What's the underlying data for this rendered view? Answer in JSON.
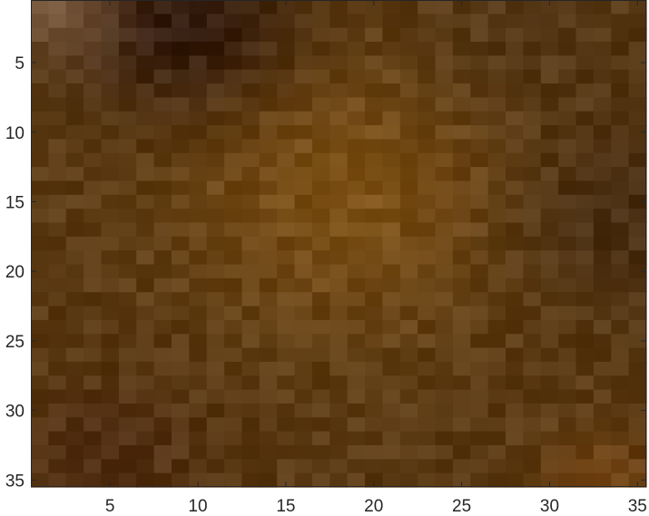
{
  "chart_data": {
    "type": "heatmap",
    "title": "",
    "xlabel": "",
    "ylabel": "",
    "xlim": [
      0.5,
      35.5
    ],
    "ylim": [
      0.5,
      35.5
    ],
    "y_direction": "reversed",
    "grid": false,
    "colormap": "RGB image",
    "x_ticks": [
      5,
      10,
      15,
      20,
      25,
      30,
      35
    ],
    "y_ticks": [
      5,
      10,
      15,
      20,
      25,
      30,
      35
    ],
    "x_tick_labels": [
      "5",
      "10",
      "15",
      "20",
      "25",
      "30",
      "35"
    ],
    "y_tick_labels": [
      "5",
      "10",
      "15",
      "20",
      "25",
      "30",
      "35"
    ],
    "rows": 35,
    "cols": 35,
    "region_colors": {
      "base": "#5a3a14",
      "top_left": "#2a140c",
      "top_left_corner": "#8a6a50",
      "top_right": "#4a3018",
      "center_glow": "#8a5a18",
      "right_edge": "#3a2412",
      "bottom_right_corner": "#7a4612",
      "bottom_left": "#4a2412"
    }
  }
}
